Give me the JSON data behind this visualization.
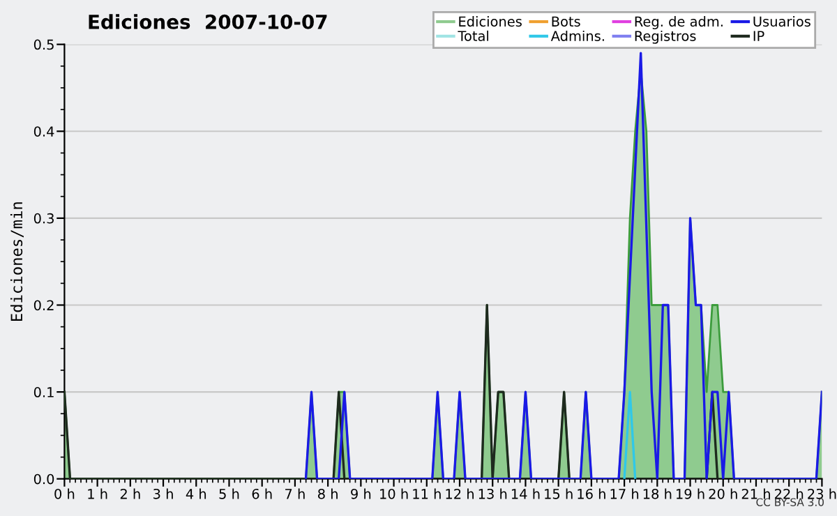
{
  "chart_data": {
    "type": "line",
    "title": "Ediciones  2007-10-07",
    "ylabel": "Ediciones/min",
    "annotations": [
      "CC BY-SA 3.0"
    ],
    "xlim": [
      0,
      23
    ],
    "ylim": [
      0,
      0.5
    ],
    "xticks": [
      {
        "value": 0,
        "label": "0 h"
      },
      {
        "value": 1,
        "label": "1 h"
      },
      {
        "value": 2,
        "label": "2 h"
      },
      {
        "value": 3,
        "label": "3 h"
      },
      {
        "value": 4,
        "label": "4 h"
      },
      {
        "value": 5,
        "label": "5 h"
      },
      {
        "value": 6,
        "label": "6 h"
      },
      {
        "value": 7,
        "label": "7 h"
      },
      {
        "value": 8,
        "label": "8 h"
      },
      {
        "value": 9,
        "label": "9 h"
      },
      {
        "value": 10,
        "label": "10 h"
      },
      {
        "value": 11,
        "label": "11 h"
      },
      {
        "value": 12,
        "label": "12 h"
      },
      {
        "value": 13,
        "label": "13 h"
      },
      {
        "value": 14,
        "label": "14 h"
      },
      {
        "value": 15,
        "label": "15 h"
      },
      {
        "value": 16,
        "label": "16 h"
      },
      {
        "value": 17,
        "label": "17 h"
      },
      {
        "value": 18,
        "label": "18 h"
      },
      {
        "value": 19,
        "label": "19 h"
      },
      {
        "value": 20,
        "label": "20 h"
      },
      {
        "value": 21,
        "label": "21 h"
      },
      {
        "value": 22,
        "label": "22 h"
      },
      {
        "value": 23,
        "label": "23 h"
      }
    ],
    "yticks": [
      {
        "value": 0,
        "label": "0.0"
      },
      {
        "value": 0.1,
        "label": "0.1"
      },
      {
        "value": 0.2,
        "label": "0.2"
      },
      {
        "value": 0.3,
        "label": "0.3"
      },
      {
        "value": 0.4,
        "label": "0.4"
      },
      {
        "value": 0.5,
        "label": "0.5"
      }
    ],
    "grid": "y",
    "legend": "top right",
    "series": [
      {
        "name": "Ediciones",
        "type": "area",
        "color": "#8fcb8f",
        "x": [
          0,
          0.17,
          7.33,
          7.5,
          7.67,
          8.17,
          8.33,
          8.5,
          8.67,
          11.17,
          11.33,
          11.5,
          11.83,
          12,
          12.17,
          12.67,
          12.83,
          13,
          13.17,
          13.33,
          13.5,
          13.83,
          14,
          14.17,
          15,
          15.17,
          15.33,
          15.67,
          15.83,
          16,
          16.83,
          17,
          17.17,
          17.33,
          17.5,
          17.67,
          17.83,
          18,
          18.17,
          18.33,
          18.5,
          18.83,
          19,
          19.17,
          19.33,
          19.5,
          19.67,
          19.83,
          20,
          20.17,
          20.33,
          22.83,
          23
        ],
        "values": [
          0.1,
          0,
          0,
          0.1,
          0,
          0,
          0.1,
          0.1,
          0,
          0,
          0.1,
          0,
          0,
          0.1,
          0,
          0,
          0.2,
          0,
          0.1,
          0.1,
          0,
          0,
          0.1,
          0,
          0,
          0.1,
          0,
          0,
          0.1,
          0,
          0,
          0.1,
          0.3,
          0.4,
          0.47,
          0.4,
          0.2,
          0.2,
          0.2,
          0.2,
          0,
          0,
          0.3,
          0.2,
          0.2,
          0.1,
          0.2,
          0.2,
          0.1,
          0.1,
          0,
          0,
          0.1
        ]
      },
      {
        "name": "Total",
        "color": "#a0e4e4"
      },
      {
        "name": "Bots",
        "color": "#f0a030"
      },
      {
        "name": "Admins.",
        "color": "#30c8e8",
        "x": [
          17,
          17.17,
          17.33
        ],
        "values": [
          0,
          0.1,
          0
        ]
      },
      {
        "name": "Reg. de adm.",
        "color": "#e040e0"
      },
      {
        "name": "Registros",
        "color": "#8080f0"
      },
      {
        "name": "Usuarios",
        "color": "#1a1ae6",
        "x": [
          7.33,
          7.5,
          7.67,
          8.33,
          8.5,
          8.67,
          11.17,
          11.33,
          11.5,
          11.83,
          12,
          12.17,
          13.83,
          14,
          14.17,
          15.67,
          15.83,
          16,
          16.83,
          17,
          17.5,
          17.83,
          18,
          18.17,
          18.33,
          18.5,
          18.83,
          19,
          19.17,
          19.33,
          19.5,
          19.67,
          19.83,
          20,
          20.17,
          20.33,
          22.83,
          23
        ],
        "values": [
          0,
          0.1,
          0,
          0,
          0.1,
          0,
          0,
          0.1,
          0,
          0,
          0.1,
          0,
          0,
          0.1,
          0,
          0,
          0.1,
          0,
          0,
          0.1,
          0.49,
          0.1,
          0,
          0.2,
          0.2,
          0,
          0,
          0.3,
          0.2,
          0.2,
          0,
          0.1,
          0.1,
          0,
          0.1,
          0,
          0,
          0.1
        ]
      },
      {
        "name": "IP",
        "color": "#1e2a1e",
        "x": [
          0,
          0.17,
          8.17,
          8.33,
          8.5,
          12.67,
          12.83,
          13,
          13.17,
          13.33,
          13.5,
          15,
          15.17,
          15.33,
          19.5,
          19.67,
          19.83
        ],
        "values": [
          0.1,
          0,
          0,
          0.1,
          0,
          0,
          0.2,
          0,
          0.1,
          0.1,
          0,
          0,
          0.1,
          0,
          0,
          0.1,
          0
        ]
      }
    ]
  }
}
